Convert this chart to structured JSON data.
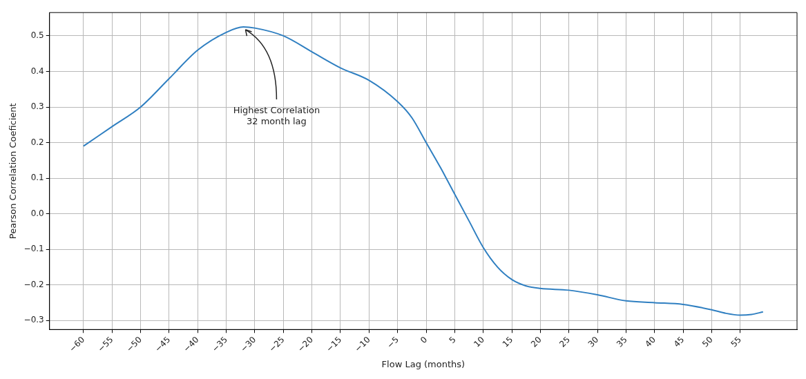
{
  "chart_data": {
    "type": "line",
    "xlabel": "Flow Lag (months)",
    "ylabel": "Pearson Correlation Coeficient",
    "x": [
      -60,
      -55,
      -50,
      -45,
      -40,
      -35,
      -32,
      -30,
      -25,
      -20,
      -15,
      -10,
      -5,
      -2.5,
      0,
      2.5,
      5,
      7.5,
      10,
      12.5,
      15,
      17.5,
      20,
      25,
      30,
      35,
      40,
      45,
      50,
      52.5,
      55,
      57,
      59
    ],
    "series": [
      {
        "color": "#2f7fc1",
        "values": [
          0.19,
          0.245,
          0.3,
          0.38,
          0.46,
          0.51,
          0.525,
          0.522,
          0.5,
          0.455,
          0.41,
          0.375,
          0.315,
          0.27,
          0.2,
          0.13,
          0.055,
          -0.02,
          -0.095,
          -0.15,
          -0.185,
          -0.203,
          -0.21,
          -0.215,
          -0.228,
          -0.245,
          -0.25,
          -0.255,
          -0.27,
          -0.28,
          -0.285,
          -0.283,
          -0.276
        ]
      }
    ],
    "xlim": [
      -65.95,
      64.95
    ],
    "xticks": [
      {
        "value": -60,
        "label": "−60"
      },
      {
        "value": -55,
        "label": "−55"
      },
      {
        "value": -50,
        "label": "−50"
      },
      {
        "value": -45,
        "label": "−45"
      },
      {
        "value": -40,
        "label": "−40"
      },
      {
        "value": -35,
        "label": "−35"
      },
      {
        "value": -30,
        "label": "−30"
      },
      {
        "value": -25,
        "label": "−25"
      },
      {
        "value": -20,
        "label": "−20"
      },
      {
        "value": -15,
        "label": "−15"
      },
      {
        "value": -10,
        "label": "−10"
      },
      {
        "value": -5,
        "label": "−5"
      },
      0,
      5,
      10,
      15,
      20,
      25,
      30,
      35,
      40,
      45,
      50,
      55
    ],
    "ylim": [
      -0.3255,
      0.5655
    ],
    "yticks": [
      {
        "value": -0.3,
        "label": "−0.3"
      },
      {
        "value": -0.2,
        "label": "−0.2"
      },
      {
        "value": -0.1,
        "label": "−0.1"
      },
      {
        "value": 0,
        "label": "0.0"
      },
      0.1,
      0.2,
      0.3,
      0.4,
      0.5
    ],
    "annotations": [
      {
        "text": "Highest Correlation\n32 month lag",
        "x": -32,
        "y": 0.525
      }
    ],
    "grid": true,
    "legend": false,
    "marker": "none",
    "line_style": "solid"
  }
}
